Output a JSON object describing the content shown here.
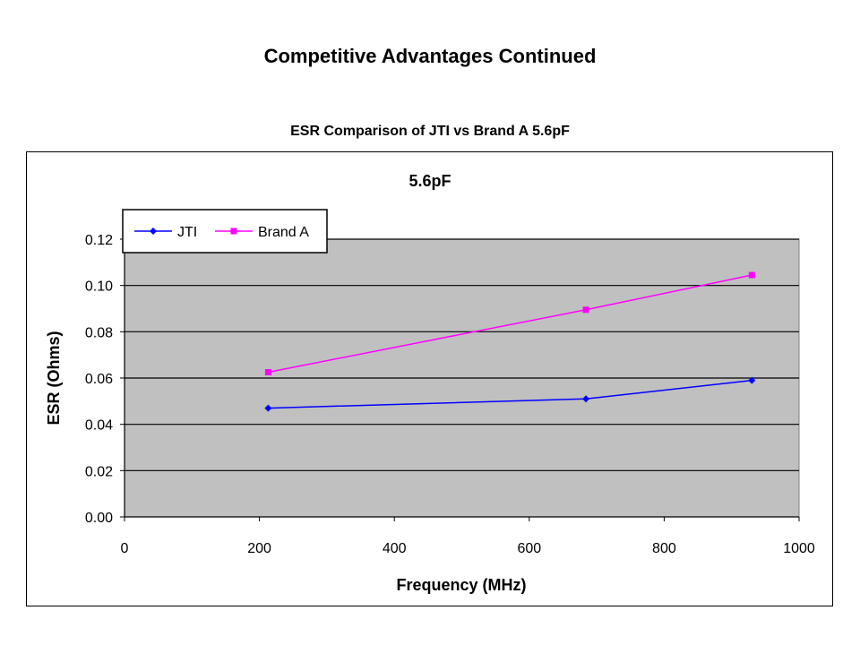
{
  "slide": {
    "title": "Competitive Advantages Continued",
    "chart_caption": "ESR Comparison of JTI vs Brand A 5.6pF"
  },
  "colors": {
    "plot_bg": "#c0c0c0",
    "jti": "#0000ff",
    "brand_a": "#ff00ff"
  },
  "chart_data": {
    "type": "line",
    "title": "5.6pF",
    "xlabel": "Frequency (MHz)",
    "ylabel": "ESR (Ohms)",
    "xlim": [
      0,
      1000
    ],
    "ylim": [
      0,
      0.12
    ],
    "xticks": [
      "0",
      "200",
      "400",
      "600",
      "800",
      "1000"
    ],
    "yticks": [
      "0.00",
      "0.02",
      "0.04",
      "0.06",
      "0.08",
      "0.10",
      "0.12"
    ],
    "grid": true,
    "legend": "top-left",
    "series": [
      {
        "name": "JTI",
        "marker": "diamond",
        "x": [
          213,
          684,
          930
        ],
        "y": [
          0.047,
          0.051,
          0.059
        ]
      },
      {
        "name": "Brand A",
        "marker": "square",
        "x": [
          213,
          684,
          930
        ],
        "y": [
          0.0625,
          0.0895,
          0.1045
        ]
      }
    ]
  }
}
